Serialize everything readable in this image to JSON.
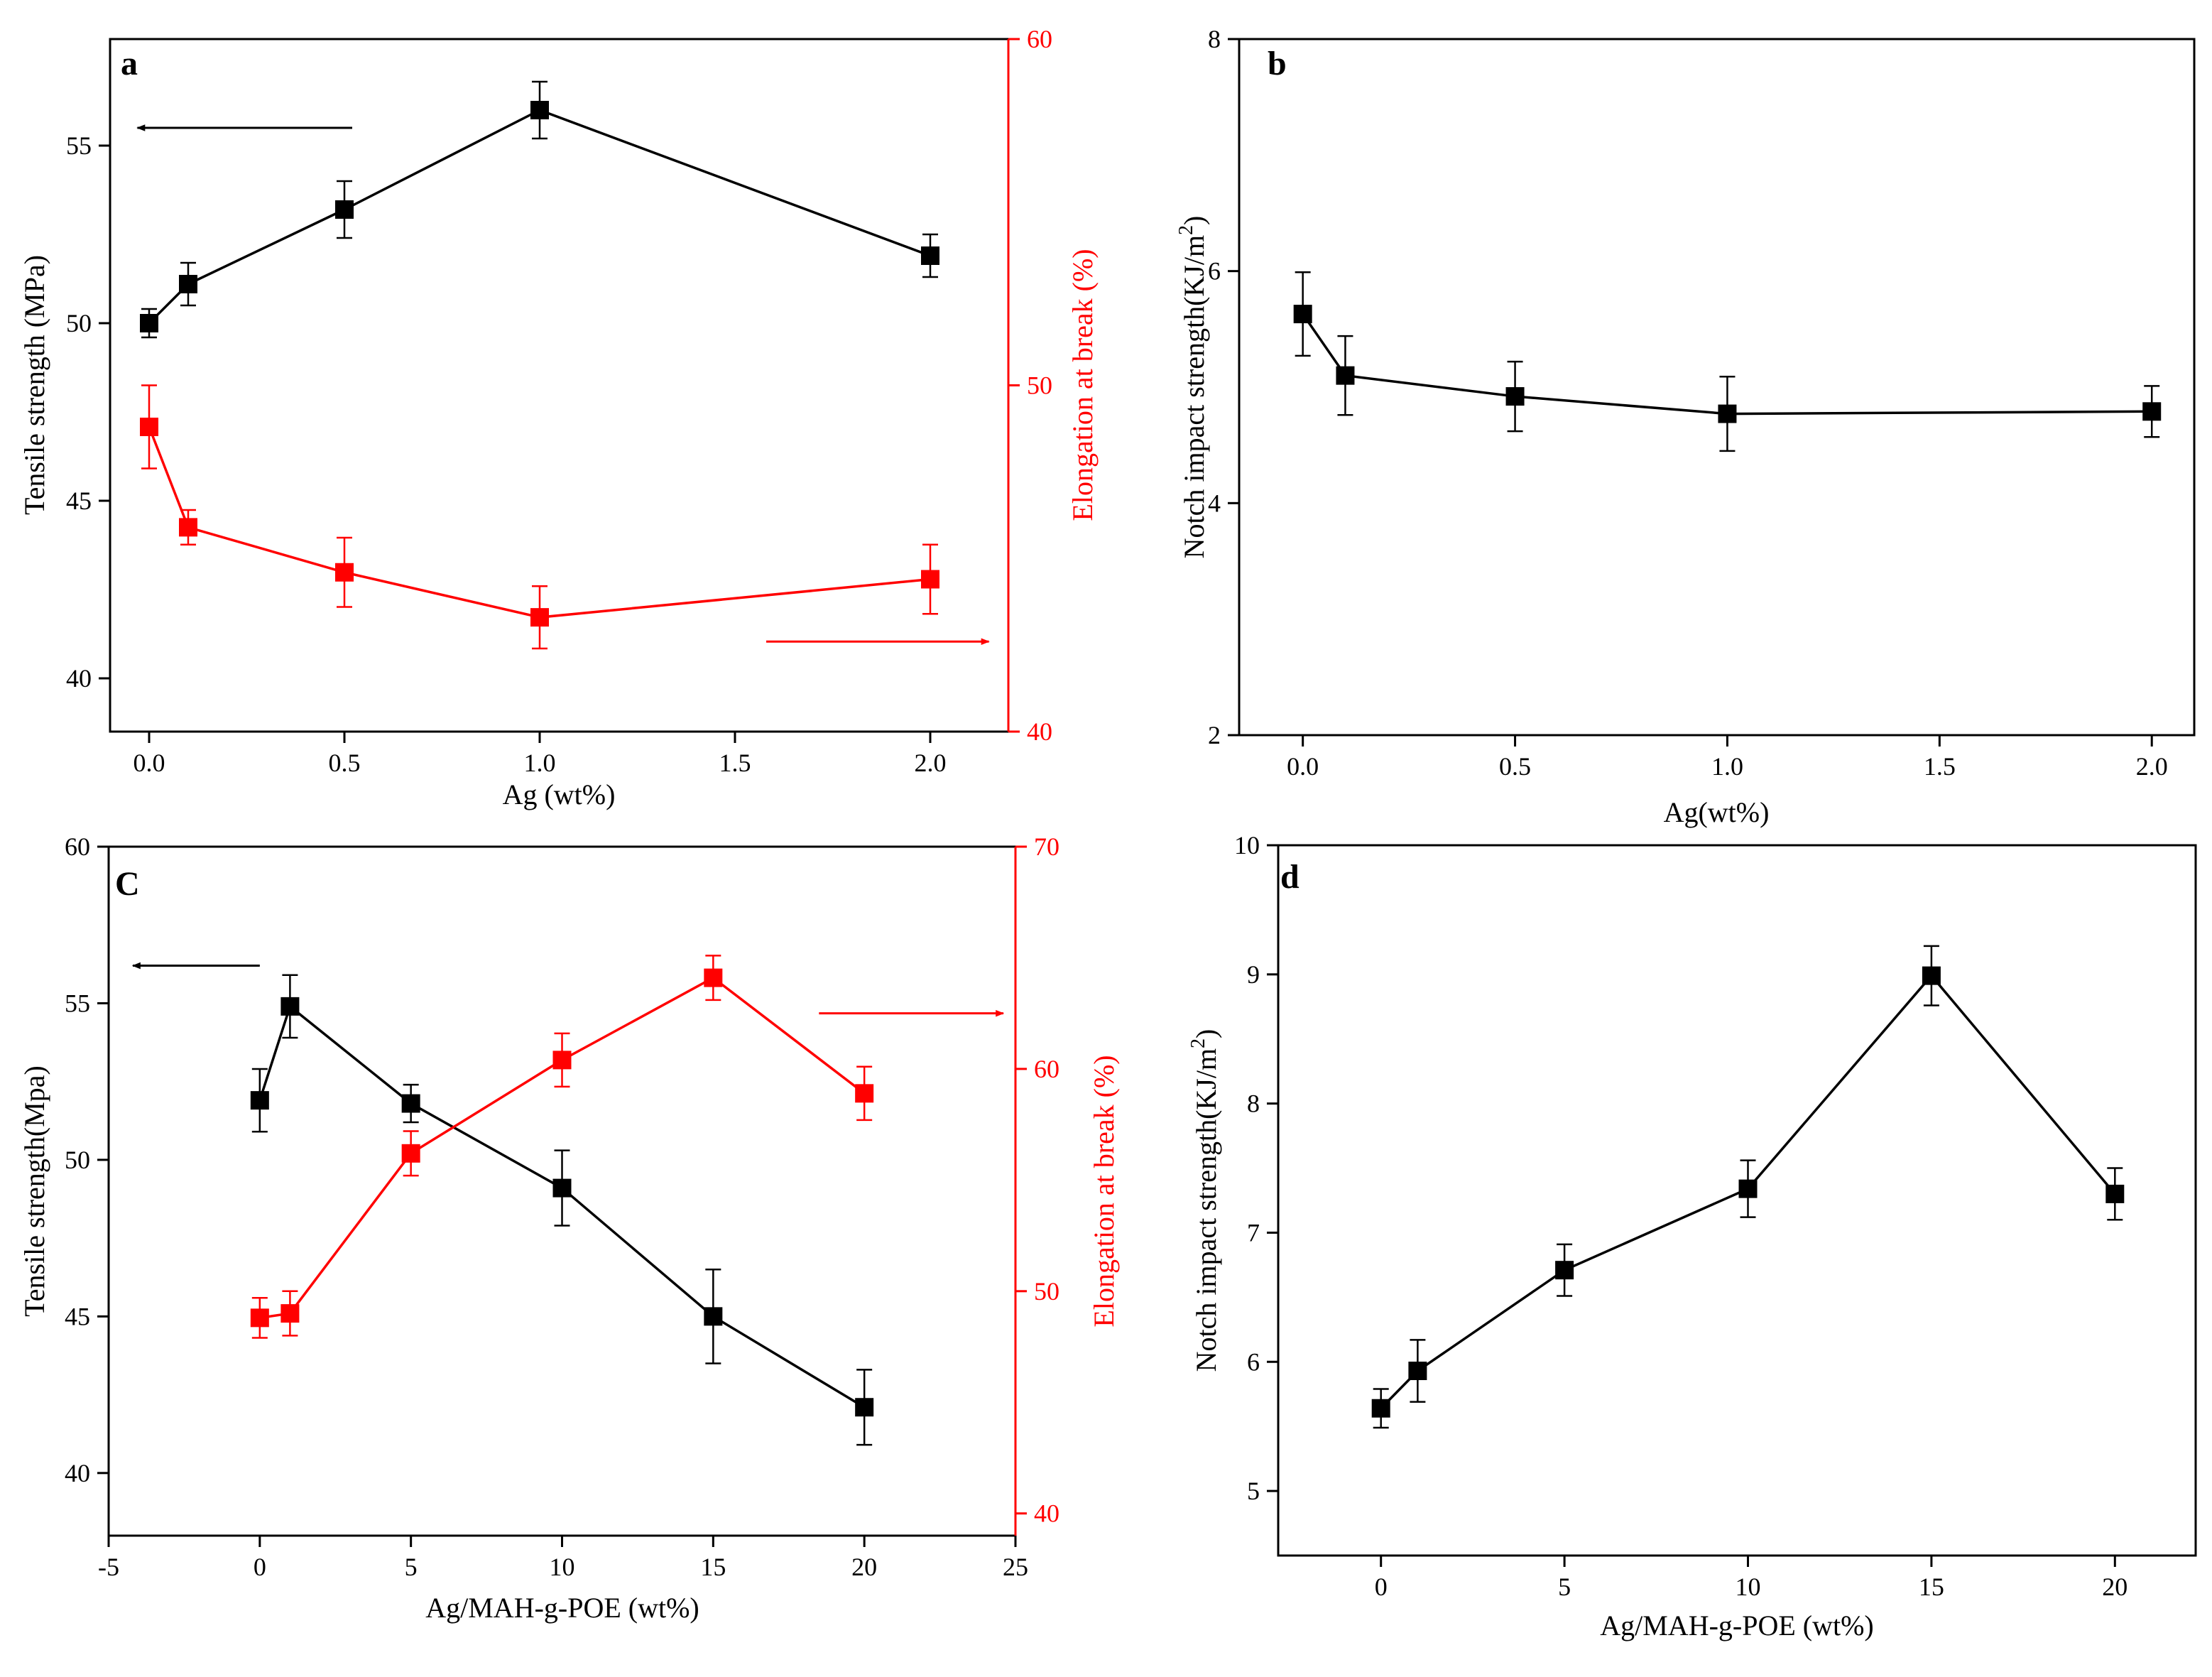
{
  "figure": {
    "colors": {
      "black": "#000000",
      "red": "#ff0000"
    }
  },
  "chart_data": [
    {
      "panel": "a",
      "type": "line",
      "x": [
        0,
        0.1,
        0.5,
        1.0,
        2.0
      ],
      "xlabel": "Ag (wt%)",
      "xlim": [
        -0.1,
        2.2
      ],
      "xticks": [
        0.0,
        0.5,
        1.0,
        1.5,
        2.0
      ],
      "xtick_labels": [
        "0.0",
        "0.5",
        "1.0",
        "1.5",
        "2.0"
      ],
      "ylabel": "Tensile strength (MPa)",
      "ylim": [
        38.5,
        58
      ],
      "yticks": [
        40,
        45,
        50,
        55
      ],
      "ytick_labels": [
        "40",
        "45",
        "50",
        "55"
      ],
      "y2label": "Elongation at break (%)",
      "y2lim": [
        40,
        60
      ],
      "y2ticks": [
        40,
        50,
        60
      ],
      "y2tick_labels": [
        "40",
        "50",
        "60"
      ],
      "series": [
        {
          "name": "Tensile strength",
          "axis": "left",
          "color": "#000000",
          "values": [
            50.0,
            51.1,
            53.2,
            56.0,
            51.9
          ],
          "errors": [
            0.4,
            0.6,
            0.8,
            0.8,
            0.6
          ]
        },
        {
          "name": "Elongation at break",
          "axis": "right",
          "color": "#ff0000",
          "values": [
            48.8,
            45.9,
            44.6,
            43.3,
            44.4
          ],
          "errors": [
            1.2,
            0.5,
            1.0,
            0.9,
            1.0
          ]
        }
      ],
      "arrows": [
        {
          "axis": "left",
          "direction": "left",
          "y": 55.5,
          "x_from": 0.52,
          "x_to": -0.03
        },
        {
          "axis": "right",
          "direction": "right",
          "y": 42.6,
          "x_from": 1.58,
          "x_to": 2.15
        }
      ]
    },
    {
      "panel": "b",
      "type": "line",
      "x": [
        0,
        0.1,
        0.5,
        1.0,
        2.0
      ],
      "xlabel": "Ag(wt%)",
      "xlim": [
        -0.15,
        2.1
      ],
      "xticks": [
        0.0,
        0.5,
        1.0,
        1.5,
        2.0
      ],
      "xtick_labels": [
        "0.0",
        "0.5",
        "1.0",
        "1.5",
        "2.0"
      ],
      "ylabel": "Notch impact strength(KJ/m",
      "ylabel_sup": "2",
      "ylabel_end": ")",
      "ylim": [
        2,
        8
      ],
      "yticks": [
        2,
        4,
        6,
        8
      ],
      "ytick_labels": [
        "2",
        "4",
        "6",
        "8"
      ],
      "series": [
        {
          "name": "Notch impact strength",
          "color": "#000000",
          "values": [
            5.63,
            5.1,
            4.92,
            4.77,
            4.79
          ],
          "errors": [
            0.36,
            0.34,
            0.3,
            0.32,
            0.22
          ]
        }
      ]
    },
    {
      "panel": "C",
      "type": "line",
      "x": [
        0,
        1,
        5,
        10,
        15,
        20
      ],
      "xlabel": "Ag/MAH-g-POE (wt%)",
      "xlim": [
        -5,
        25
      ],
      "xticks": [
        -5,
        0,
        5,
        10,
        15,
        20,
        25
      ],
      "xtick_labels": [
        "-5",
        "0",
        "5",
        "10",
        "15",
        "20",
        "25"
      ],
      "ylabel": "Tensile strength(Mpa)",
      "ylim": [
        38,
        60
      ],
      "yticks": [
        40,
        45,
        50,
        55,
        60
      ],
      "ytick_labels": [
        "40",
        "45",
        "50",
        "55",
        "60"
      ],
      "y2label": "Elongation at break (%)",
      "y2lim": [
        39,
        70
      ],
      "y2ticks": [
        40,
        50,
        60,
        70
      ],
      "y2tick_labels": [
        "40",
        "50",
        "60",
        "70"
      ],
      "series": [
        {
          "name": "Tensile strength",
          "axis": "left",
          "color": "#000000",
          "values": [
            51.9,
            54.9,
            51.8,
            49.1,
            45.0,
            42.1
          ],
          "errors": [
            1.0,
            1.0,
            0.6,
            1.2,
            1.5,
            1.2
          ]
        },
        {
          "name": "Elongation at break",
          "axis": "right",
          "color": "#ff0000",
          "values": [
            48.8,
            49.0,
            56.2,
            60.4,
            64.1,
            58.9
          ],
          "errors": [
            0.9,
            1.0,
            1.0,
            1.2,
            1.0,
            1.2
          ]
        }
      ],
      "arrows": [
        {
          "axis": "left",
          "direction": "left",
          "y": 56.2,
          "x_from": 0.0,
          "x_to": -4.2
        },
        {
          "axis": "right",
          "direction": "right",
          "y": 62.5,
          "x_from": 18.5,
          "x_to": 24.6
        }
      ]
    },
    {
      "panel": "d",
      "type": "line",
      "x": [
        0,
        1,
        5,
        10,
        15,
        20
      ],
      "xlabel": "Ag/MAH-g-POE (wt%)",
      "xlim": [
        -2.8,
        22.2
      ],
      "xticks": [
        0,
        5,
        10,
        15,
        20
      ],
      "xtick_labels": [
        "0",
        "5",
        "10",
        "15",
        "20"
      ],
      "ylabel": "Notch impact strength(KJ/m",
      "ylabel_sup": "2",
      "ylabel_end": ")",
      "ylim": [
        4.5,
        10
      ],
      "yticks": [
        5,
        6,
        7,
        8,
        9,
        10
      ],
      "ytick_labels": [
        "5",
        "6",
        "7",
        "8",
        "9",
        "10"
      ],
      "series": [
        {
          "name": "Notch impact strength",
          "color": "#000000",
          "values": [
            5.64,
            5.93,
            6.71,
            7.34,
            8.99,
            7.3
          ],
          "errors": [
            0.15,
            0.24,
            0.2,
            0.22,
            0.23,
            0.2
          ]
        }
      ]
    }
  ]
}
